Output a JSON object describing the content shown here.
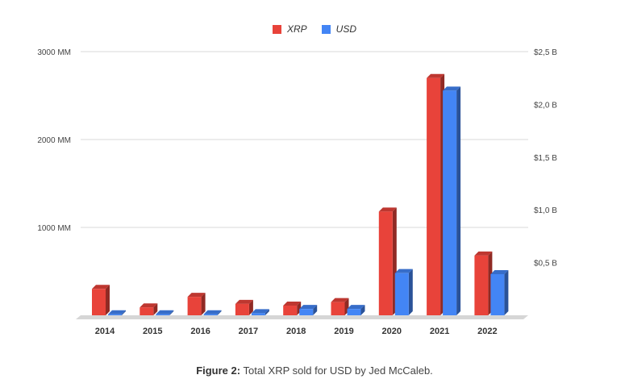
{
  "chart_data": {
    "type": "bar",
    "categories": [
      "2014",
      "2015",
      "2016",
      "2017",
      "2018",
      "2019",
      "2020",
      "2021",
      "2022"
    ],
    "series": [
      {
        "name": "XRP",
        "axis": "left",
        "color": "#e8433a",
        "values": [
          300,
          90,
          210,
          130,
          110,
          150,
          1180,
          2700,
          680
        ]
      },
      {
        "name": "USD",
        "axis": "right",
        "color": "#4385f5",
        "values": [
          0.01,
          0.01,
          0.01,
          0.02,
          0.06,
          0.06,
          0.4,
          2.13,
          0.39
        ]
      }
    ],
    "left_axis": {
      "ylim": [
        0,
        3000
      ],
      "ticks": [
        1000,
        2000,
        3000
      ],
      "tick_labels": [
        "1000 MM",
        "2000 MM",
        "3000 MM"
      ]
    },
    "right_axis": {
      "ylim": [
        0,
        2.5
      ],
      "ticks": [
        0.5,
        1.0,
        1.5,
        2.0,
        2.5
      ],
      "tick_labels": [
        "$0,5 B",
        "$1,0 B",
        "$1,5 B",
        "$2,0 B",
        "$2,5 B"
      ]
    },
    "legend_position": "top-center",
    "grid": true
  },
  "caption": {
    "label": "Figure 2:",
    "text": "Total XRP sold for USD by Jed McCaleb."
  }
}
